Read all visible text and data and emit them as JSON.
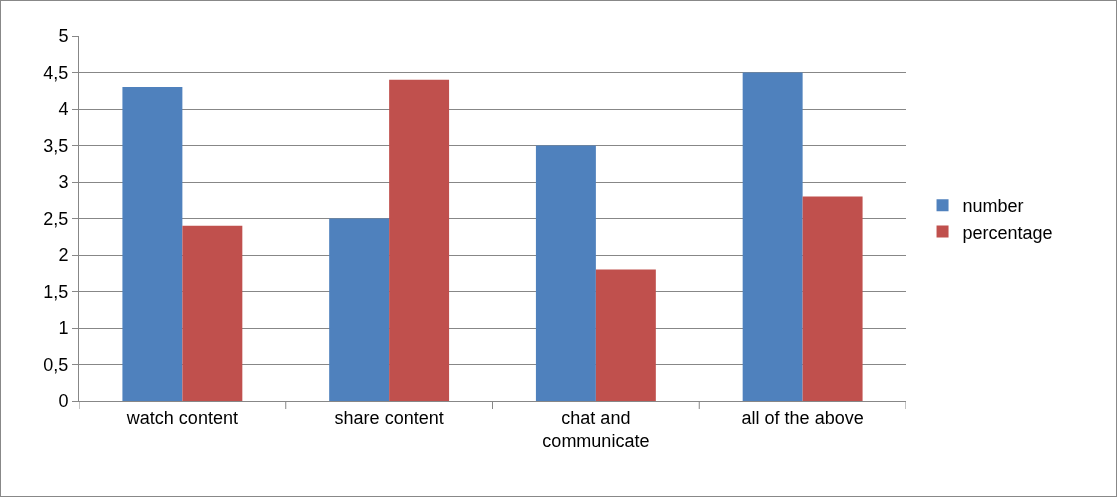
{
  "chart_data": {
    "type": "bar",
    "categories": [
      "watch content",
      "share content",
      "chat and communicate",
      "all of the above"
    ],
    "series": [
      {
        "name": "number",
        "color": "#4f81bd",
        "values": [
          4.3,
          2.5,
          3.5,
          4.5
        ]
      },
      {
        "name": "percentage",
        "color": "#c0504d",
        "values": [
          2.4,
          4.4,
          1.8,
          2.8
        ]
      }
    ],
    "ylim": [
      0,
      5
    ],
    "yticks": [
      0,
      {
        "value": 0.5,
        "label": "0,5"
      },
      1,
      {
        "value": 1.5,
        "label": "1,5"
      },
      2,
      {
        "value": 2.5,
        "label": "2,5"
      },
      3,
      {
        "value": 3.5,
        "label": "3,5"
      },
      4,
      {
        "value": 4.5,
        "label": "4,5"
      },
      5
    ],
    "grid": "y",
    "legend": "right"
  }
}
